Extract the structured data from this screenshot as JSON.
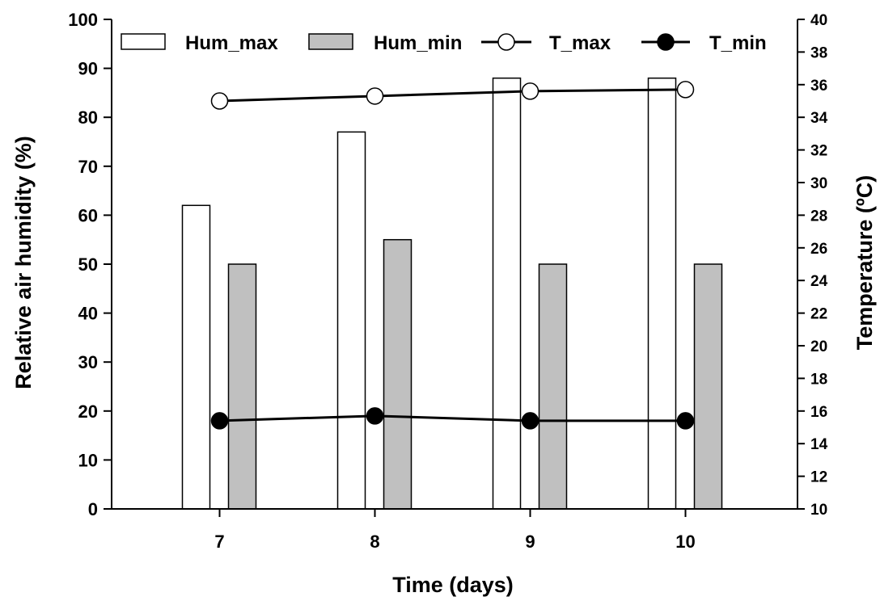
{
  "chart_data": {
    "type": "bar",
    "categories": [
      "7",
      "8",
      "9",
      "10"
    ],
    "x": [
      7,
      8,
      9,
      10
    ],
    "xlabel": "Time (days)",
    "ylabel": "Relative air humidity (%)",
    "y2label": "Temperature (ºC)",
    "ylim": [
      0,
      100
    ],
    "y2lim": [
      10,
      40
    ],
    "yticks": [
      "0",
      "10",
      "20",
      "30",
      "40",
      "50",
      "60",
      "70",
      "80",
      "90",
      "100"
    ],
    "y2ticks": [
      "10",
      "12",
      "14",
      "16",
      "18",
      "20",
      "22",
      "24",
      "26",
      "28",
      "30",
      "32",
      "34",
      "36",
      "38",
      "40"
    ],
    "bar_series": [
      {
        "name": "Hum_max",
        "values": [
          62,
          77,
          88,
          88
        ],
        "fill": "#ffffff",
        "axis": "left"
      },
      {
        "name": "Hum_min",
        "values": [
          50,
          55,
          50,
          50
        ],
        "fill": "#c0c0c0",
        "axis": "left"
      }
    ],
    "line_series": [
      {
        "name": "T_max",
        "values": [
          35.0,
          35.3,
          35.6,
          35.7
        ],
        "marker": "open-circle",
        "axis": "right"
      },
      {
        "name": "T_min",
        "values": [
          15.4,
          15.7,
          15.4,
          15.4
        ],
        "marker": "filled-circle",
        "axis": "right"
      }
    ],
    "legend": {
      "position": "top",
      "entries": [
        "Hum_max",
        "Hum_min",
        "T_max",
        "T_min"
      ]
    },
    "grid": false,
    "colors": {
      "axis": "#000000",
      "hum_min_fill": "#c0c0c0",
      "hum_max_fill": "#ffffff",
      "line": "#000000"
    }
  }
}
